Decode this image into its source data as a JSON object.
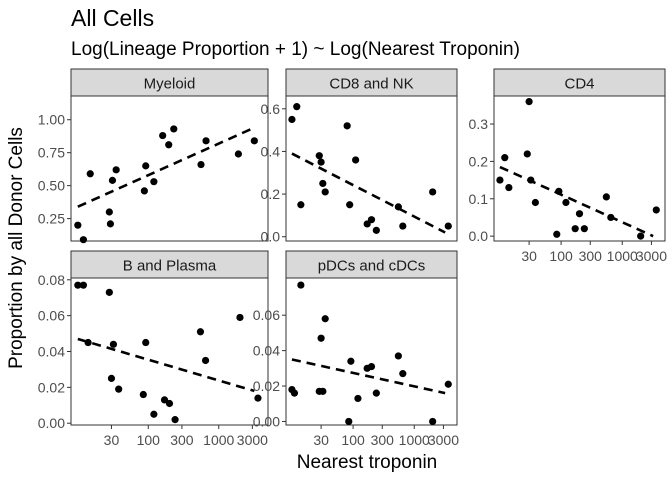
{
  "title": "All Cells",
  "subtitle": "Log(Lineage Proportion + 1) ~ Log(Nearest Troponin)",
  "xlabel": "Nearest troponin",
  "ylabel": "Proportion by all Donor Cells",
  "chart_data": [
    {
      "type": "scatter",
      "panel": "Myeloid",
      "x_scale": "log",
      "xlim": [
        8,
        5000
      ],
      "ylim": [
        0.08,
        1.18
      ],
      "y_ticks": [
        0.25,
        0.5,
        0.75,
        1.0
      ],
      "y_tick_labels": [
        "0.25",
        "0.50",
        "0.75",
        "1.00"
      ],
      "x_ticks": [],
      "x_tick_labels": [],
      "points": [
        {
          "x": 10,
          "y": 0.2
        },
        {
          "x": 12,
          "y": 0.09
        },
        {
          "x": 15,
          "y": 0.59
        },
        {
          "x": 28,
          "y": 0.3
        },
        {
          "x": 29,
          "y": 0.21
        },
        {
          "x": 31,
          "y": 0.54
        },
        {
          "x": 35,
          "y": 0.62
        },
        {
          "x": 88,
          "y": 0.46
        },
        {
          "x": 92,
          "y": 0.65
        },
        {
          "x": 120,
          "y": 0.53
        },
        {
          "x": 160,
          "y": 0.88
        },
        {
          "x": 195,
          "y": 0.81
        },
        {
          "x": 230,
          "y": 0.93
        },
        {
          "x": 560,
          "y": 0.66
        },
        {
          "x": 660,
          "y": 0.84
        },
        {
          "x": 1900,
          "y": 0.74
        },
        {
          "x": 3200,
          "y": 0.84
        }
      ],
      "trend": [
        {
          "x": 10,
          "y": 0.34
        },
        {
          "x": 3200,
          "y": 0.94
        }
      ],
      "grid": false
    },
    {
      "type": "scatter",
      "panel": "CD8 and NK",
      "x_scale": "log",
      "xlim": [
        8,
        5000
      ],
      "ylim": [
        -0.02,
        0.66
      ],
      "y_ticks": [
        0.0,
        0.2,
        0.4,
        0.6
      ],
      "y_tick_labels": [
        "0.0",
        "0.2",
        "0.4",
        "0.6"
      ],
      "x_ticks": [],
      "x_tick_labels": [],
      "points": [
        {
          "x": 10,
          "y": 0.55
        },
        {
          "x": 12,
          "y": 0.61
        },
        {
          "x": 14,
          "y": 0.15
        },
        {
          "x": 28,
          "y": 0.38
        },
        {
          "x": 30,
          "y": 0.35
        },
        {
          "x": 32,
          "y": 0.25
        },
        {
          "x": 35,
          "y": 0.21
        },
        {
          "x": 80,
          "y": 0.52
        },
        {
          "x": 88,
          "y": 0.15
        },
        {
          "x": 110,
          "y": 0.36
        },
        {
          "x": 170,
          "y": 0.06
        },
        {
          "x": 200,
          "y": 0.08
        },
        {
          "x": 240,
          "y": 0.03
        },
        {
          "x": 550,
          "y": 0.14
        },
        {
          "x": 650,
          "y": 0.05
        },
        {
          "x": 2000,
          "y": 0.21
        },
        {
          "x": 3600,
          "y": 0.05
        }
      ],
      "trend": [
        {
          "x": 10,
          "y": 0.39
        },
        {
          "x": 3200,
          "y": 0.02
        }
      ],
      "grid": false
    },
    {
      "type": "scatter",
      "panel": "CD4",
      "x_scale": "log",
      "xlim": [
        8,
        5000
      ],
      "ylim": [
        -0.013,
        0.375
      ],
      "y_ticks": [
        0.0,
        0.1,
        0.2,
        0.3
      ],
      "y_tick_labels": [
        "0.0",
        "0.1",
        "0.2",
        "0.3"
      ],
      "x_ticks": [
        30,
        100,
        300,
        1000,
        3000
      ],
      "x_tick_labels": [
        "30",
        "100",
        "300",
        "1000",
        "3000"
      ],
      "points": [
        {
          "x": 10,
          "y": 0.15
        },
        {
          "x": 12,
          "y": 0.21
        },
        {
          "x": 14,
          "y": 0.13
        },
        {
          "x": 28,
          "y": 0.22
        },
        {
          "x": 30,
          "y": 0.36
        },
        {
          "x": 32,
          "y": 0.15
        },
        {
          "x": 38,
          "y": 0.09
        },
        {
          "x": 85,
          "y": 0.005
        },
        {
          "x": 92,
          "y": 0.12
        },
        {
          "x": 120,
          "y": 0.09
        },
        {
          "x": 170,
          "y": 0.02
        },
        {
          "x": 200,
          "y": 0.06
        },
        {
          "x": 240,
          "y": 0.02
        },
        {
          "x": 550,
          "y": 0.105
        },
        {
          "x": 650,
          "y": 0.05
        },
        {
          "x": 2000,
          "y": 0.0
        },
        {
          "x": 3600,
          "y": 0.07
        }
      ],
      "trend": [
        {
          "x": 10,
          "y": 0.185
        },
        {
          "x": 3200,
          "y": 0.0
        }
      ],
      "grid": false
    },
    {
      "type": "scatter",
      "panel": "B and Plasma",
      "x_scale": "log",
      "xlim": [
        8,
        5000
      ],
      "ylim": [
        -0.001,
        0.081
      ],
      "y_ticks": [
        0.0,
        0.02,
        0.04,
        0.06,
        0.08
      ],
      "y_tick_labels": [
        "0.00",
        "0.02",
        "0.04",
        "0.06",
        "0.08"
      ],
      "x_ticks": [
        30,
        100,
        300,
        1000,
        3000
      ],
      "x_tick_labels": [
        "30",
        "100",
        "300",
        "1000",
        "3000"
      ],
      "points": [
        {
          "x": 10,
          "y": 0.077
        },
        {
          "x": 12,
          "y": 0.077
        },
        {
          "x": 14,
          "y": 0.045
        },
        {
          "x": 28,
          "y": 0.073
        },
        {
          "x": 30,
          "y": 0.025
        },
        {
          "x": 32,
          "y": 0.044
        },
        {
          "x": 38,
          "y": 0.019
        },
        {
          "x": 85,
          "y": 0.016
        },
        {
          "x": 92,
          "y": 0.045
        },
        {
          "x": 120,
          "y": 0.005
        },
        {
          "x": 170,
          "y": 0.013
        },
        {
          "x": 200,
          "y": 0.011
        },
        {
          "x": 240,
          "y": 0.002
        },
        {
          "x": 550,
          "y": 0.051
        },
        {
          "x": 650,
          "y": 0.035
        },
        {
          "x": 2000,
          "y": 0.059
        },
        {
          "x": 3600,
          "y": 0.014
        }
      ],
      "trend": [
        {
          "x": 10,
          "y": 0.047
        },
        {
          "x": 3200,
          "y": 0.018
        }
      ],
      "grid": false
    },
    {
      "type": "scatter",
      "panel": "pDCs and cDCs",
      "x_scale": "log",
      "xlim": [
        8,
        5000
      ],
      "ylim": [
        -0.002,
        0.081
      ],
      "y_ticks": [
        0.0,
        0.02,
        0.04,
        0.06
      ],
      "y_tick_labels": [
        "0.00",
        "0.02",
        "0.04",
        "0.06"
      ],
      "x_ticks": [
        30,
        100,
        300,
        1000,
        3000
      ],
      "x_tick_labels": [
        "30",
        "100",
        "300",
        "1000",
        "3000"
      ],
      "points": [
        {
          "x": 10,
          "y": 0.018
        },
        {
          "x": 11,
          "y": 0.016
        },
        {
          "x": 14,
          "y": 0.077
        },
        {
          "x": 28,
          "y": 0.017
        },
        {
          "x": 30,
          "y": 0.047
        },
        {
          "x": 32,
          "y": 0.017
        },
        {
          "x": 35,
          "y": 0.058
        },
        {
          "x": 85,
          "y": 0.0
        },
        {
          "x": 92,
          "y": 0.034
        },
        {
          "x": 120,
          "y": 0.013
        },
        {
          "x": 170,
          "y": 0.03
        },
        {
          "x": 200,
          "y": 0.031
        },
        {
          "x": 240,
          "y": 0.016
        },
        {
          "x": 550,
          "y": 0.037
        },
        {
          "x": 650,
          "y": 0.027
        },
        {
          "x": 2000,
          "y": 0.0
        },
        {
          "x": 3600,
          "y": 0.021
        }
      ],
      "trend": [
        {
          "x": 10,
          "y": 0.035
        },
        {
          "x": 3200,
          "y": 0.016
        }
      ],
      "grid": false
    }
  ],
  "colors": {
    "points": "#000000",
    "trend": "#000000",
    "strip_fill": "#d9d9d9",
    "panel_border": "#333333",
    "axis_text": "#4d4d4d",
    "text": "#000000"
  }
}
